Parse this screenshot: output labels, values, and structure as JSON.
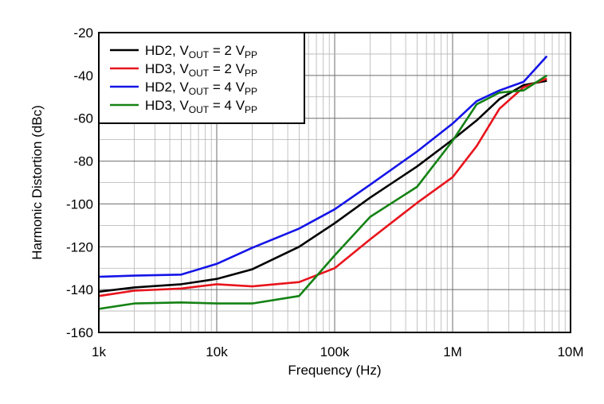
{
  "chart_data": {
    "type": "line",
    "xscale": "log",
    "xlabel": "Frequency (Hz)",
    "ylabel": "Harmonic Distortion (dBc)",
    "xlim": [
      1000,
      10000000
    ],
    "ylim": [
      -160,
      -20
    ],
    "grid": true,
    "legend_position": "top-left",
    "x_ticks": [
      1000,
      10000,
      100000,
      1000000,
      10000000
    ],
    "x_tick_labels": [
      "1k",
      "10k",
      "100k",
      "1M",
      "10M"
    ],
    "y_ticks": [
      -20,
      -40,
      -60,
      -80,
      -100,
      -120,
      -140,
      -160
    ],
    "y_tick_labels": [
      "-20",
      "-40",
      "-60",
      "-80",
      "-100",
      "-120",
      "-140",
      "-160"
    ],
    "series": [
      {
        "name": "HD2, VOUT = 2 VPP",
        "legend": {
          "base": "HD2, V",
          "sub1": "OUT",
          "mid": " = 2 V",
          "sub2": "PP"
        },
        "color": "#000000",
        "x": [
          1000,
          2000,
          5000,
          10000,
          20000,
          50000,
          100000,
          200000,
          500000,
          1000000,
          1600000,
          2500000,
          4000000,
          6300000
        ],
        "y": [
          -141,
          -139,
          -137.5,
          -135,
          -130.5,
          -120,
          -109,
          -97,
          -82.5,
          -70,
          -61,
          -51,
          -44.5,
          -42.5
        ]
      },
      {
        "name": "HD3, VOUT = 2 VPP",
        "legend": {
          "base": "HD3, V",
          "sub1": "OUT",
          "mid": " = 2 V",
          "sub2": "PP"
        },
        "color": "#e8141c",
        "x": [
          1000,
          2000,
          5000,
          10000,
          20000,
          50000,
          100000,
          200000,
          500000,
          1000000,
          1600000,
          2500000,
          4000000,
          6300000
        ],
        "y": [
          -143,
          -140.5,
          -139.5,
          -137.5,
          -138.5,
          -136.5,
          -130,
          -116.5,
          -99.5,
          -87.5,
          -73,
          -55.5,
          -45.5,
          -41.5
        ]
      },
      {
        "name": "HD2, VOUT = 4 VPP",
        "legend": {
          "base": "HD2, V",
          "sub1": "OUT",
          "mid": " = 4 V",
          "sub2": "PP"
        },
        "color": "#1414e8",
        "x": [
          1000,
          2000,
          5000,
          10000,
          20000,
          50000,
          100000,
          200000,
          500000,
          1000000,
          1600000,
          2500000,
          4000000,
          6300000
        ],
        "y": [
          -134,
          -133.5,
          -133,
          -128,
          -120.5,
          -111.5,
          -102.5,
          -91,
          -75.5,
          -62.5,
          -52,
          -47,
          -43,
          -31
        ]
      },
      {
        "name": "HD3, VOUT = 4 VPP",
        "legend": {
          "base": "HD3, V",
          "sub1": "OUT",
          "mid": " = 4 V",
          "sub2": "PP"
        },
        "color": "#148214",
        "x": [
          1000,
          2000,
          5000,
          10000,
          20000,
          50000,
          100000,
          200000,
          500000,
          1000000,
          1600000,
          2500000,
          4000000,
          6300000
        ],
        "y": [
          -149,
          -146.5,
          -146,
          -146.5,
          -146.5,
          -143,
          -124,
          -106,
          -92,
          -70.5,
          -53.5,
          -48,
          -47,
          -40
        ]
      }
    ]
  }
}
